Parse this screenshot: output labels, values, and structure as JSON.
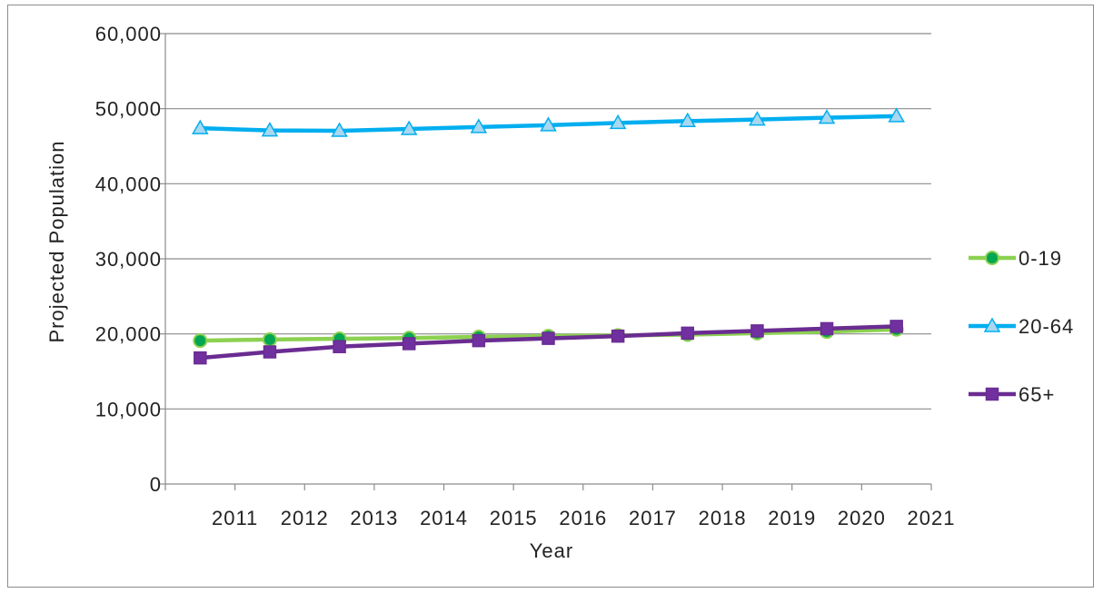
{
  "chart_data": {
    "type": "line",
    "title": "",
    "xlabel": "Year",
    "ylabel": "Projected Population",
    "ylim": [
      0,
      60000
    ],
    "yticks": [
      "0",
      "10,000",
      "20,000",
      "30,000",
      "40,000",
      "50,000",
      "60,000"
    ],
    "yticks_values": [
      0,
      10000,
      20000,
      30000,
      40000,
      50000,
      60000
    ],
    "categories": [
      "2011",
      "2012",
      "2013",
      "2014",
      "2015",
      "2016",
      "2017",
      "2018",
      "2019",
      "2020",
      "2021"
    ],
    "grid": true,
    "legend_position": "right",
    "series": [
      {
        "name": "0-19",
        "color": "#8cd150",
        "marker": "circle",
        "marker_fill": "#00a651",
        "values": [
          19100,
          19250,
          19350,
          19450,
          19600,
          19700,
          19800,
          19900,
          20100,
          20300,
          20600
        ]
      },
      {
        "name": "20-64",
        "color": "#00aeef",
        "marker": "triangle",
        "marker_fill": "#a8d8f0",
        "values": [
          47400,
          47100,
          47050,
          47300,
          47550,
          47800,
          48100,
          48350,
          48550,
          48800,
          49000
        ]
      },
      {
        "name": "65+",
        "color": "#6a2c91",
        "marker": "square",
        "marker_fill": "#7030a0",
        "values": [
          16800,
          17600,
          18300,
          18700,
          19100,
          19400,
          19700,
          20100,
          20400,
          20700,
          21000
        ]
      }
    ]
  }
}
